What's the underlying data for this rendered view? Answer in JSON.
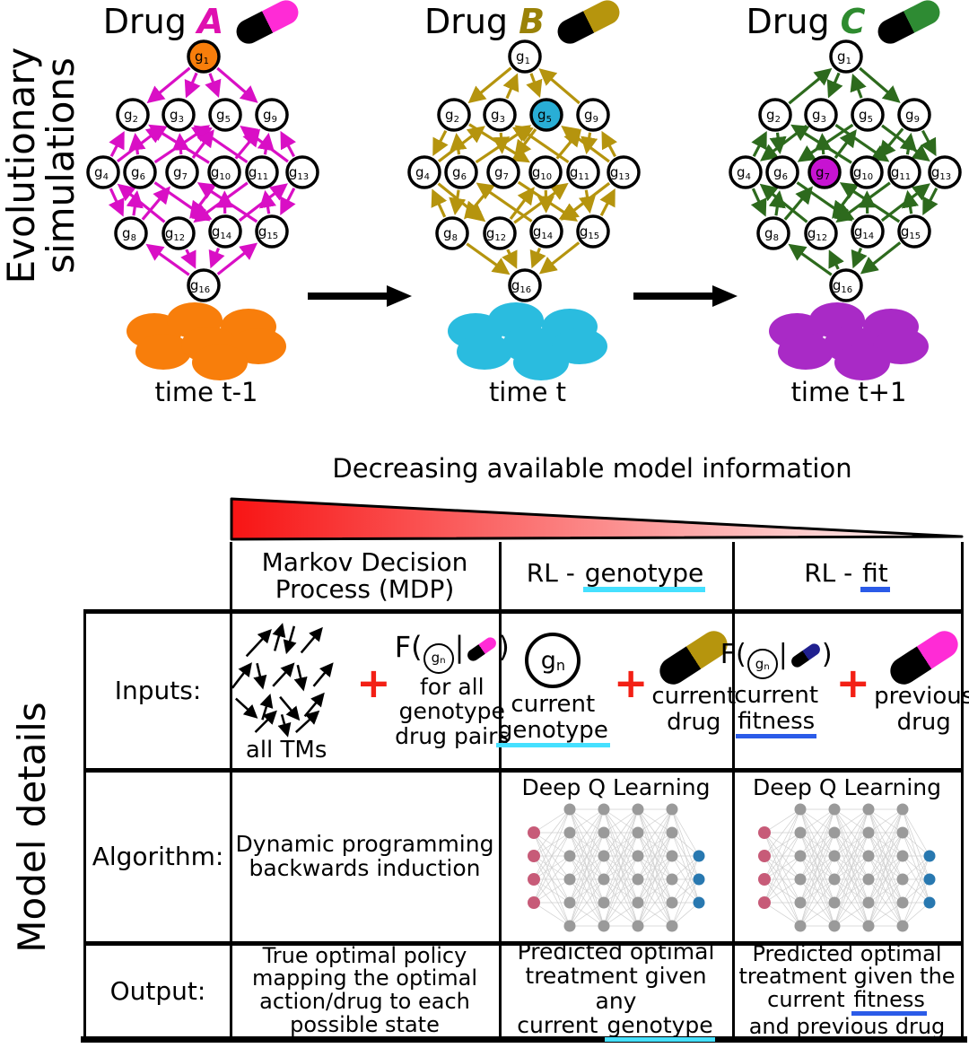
{
  "colors": {
    "plus_red": "#F32015",
    "underline_cyan": "#45E0FF",
    "underline_blue": "#2B5BE8",
    "pill_magenta": "#FF2BD6",
    "pill_olive": "#B6950D",
    "pill_green": "#2E8B33",
    "pill_navy": "#20208F",
    "nn_input": "#C75B78",
    "nn_hidden": "#9A9A9A",
    "nn_output": "#2878B0",
    "nn_edge": "#CFCFCF",
    "gradient_left": "#F81414",
    "gradient_right": "#FFFFFF"
  },
  "top": {
    "section_label_line1": "Evolutionary",
    "section_label_line2": "simulations",
    "node_prefix": "g",
    "node_count": 16,
    "panels": [
      {
        "title_prefix": "Drug",
        "letter": "A",
        "letter_color": "#DF10B0",
        "arrow_color": "#D90FC5",
        "pill_tip": "#FF2BD6",
        "highlight_node": 1,
        "highlight_fill": "#F87E0B",
        "cells_fill": "#F87E0B",
        "time_label": "time t-1",
        "edges": [
          [
            1,
            2
          ],
          [
            1,
            3
          ],
          [
            1,
            5
          ],
          [
            1,
            9
          ],
          [
            4,
            2
          ],
          [
            6,
            2
          ],
          [
            10,
            2
          ],
          [
            4,
            3
          ],
          [
            7,
            3
          ],
          [
            11,
            3
          ],
          [
            6,
            5
          ],
          [
            7,
            5
          ],
          [
            13,
            5
          ],
          [
            10,
            9
          ],
          [
            11,
            9
          ],
          [
            13,
            9
          ],
          [
            4,
            8
          ],
          [
            12,
            4
          ],
          [
            8,
            6
          ],
          [
            6,
            14
          ],
          [
            8,
            7
          ],
          [
            15,
            7
          ],
          [
            10,
            12
          ],
          [
            14,
            10
          ],
          [
            11,
            12
          ],
          [
            15,
            11
          ],
          [
            14,
            13
          ],
          [
            13,
            15
          ],
          [
            16,
            8
          ],
          [
            12,
            16
          ],
          [
            14,
            16
          ],
          [
            16,
            15
          ]
        ]
      },
      {
        "title_prefix": "Drug",
        "letter": "B",
        "letter_color": "#9A8207",
        "arrow_color": "#B5940E",
        "pill_tip": "#B6950D",
        "highlight_node": 5,
        "highlight_fill": "#29AED6",
        "cells_fill": "#2ABCDF",
        "time_label": "time t",
        "edges": [
          [
            1,
            2
          ],
          [
            3,
            1
          ],
          [
            1,
            5
          ],
          [
            9,
            1
          ],
          [
            2,
            4
          ],
          [
            6,
            2
          ],
          [
            2,
            10
          ],
          [
            4,
            3
          ],
          [
            3,
            7
          ],
          [
            11,
            3
          ],
          [
            6,
            5
          ],
          [
            5,
            7
          ],
          [
            13,
            5
          ],
          [
            10,
            9
          ],
          [
            9,
            11
          ],
          [
            13,
            9
          ],
          [
            8,
            4
          ],
          [
            4,
            12
          ],
          [
            6,
            8
          ],
          [
            14,
            6
          ],
          [
            7,
            8
          ],
          [
            7,
            15
          ],
          [
            12,
            10
          ],
          [
            10,
            14
          ],
          [
            12,
            11
          ],
          [
            11,
            15
          ],
          [
            13,
            14
          ],
          [
            15,
            13
          ],
          [
            8,
            16
          ],
          [
            12,
            16
          ],
          [
            14,
            16
          ],
          [
            15,
            16
          ]
        ]
      },
      {
        "title_prefix": "Drug",
        "letter": "C",
        "letter_color": "#2E8B2F",
        "arrow_color": "#2D6A1D",
        "pill_tip": "#2E8B33",
        "highlight_node": 7,
        "highlight_fill": "#C713D2",
        "cells_fill": "#A92AC6",
        "time_label": "time t+1",
        "edges": [
          [
            2,
            1
          ],
          [
            1,
            3
          ],
          [
            5,
            1
          ],
          [
            1,
            9
          ],
          [
            4,
            2
          ],
          [
            2,
            6
          ],
          [
            10,
            2
          ],
          [
            3,
            4
          ],
          [
            7,
            3
          ],
          [
            3,
            11
          ],
          [
            5,
            6
          ],
          [
            7,
            5
          ],
          [
            5,
            13
          ],
          [
            9,
            10
          ],
          [
            11,
            9
          ],
          [
            9,
            13
          ],
          [
            4,
            8
          ],
          [
            12,
            4
          ],
          [
            8,
            6
          ],
          [
            6,
            14
          ],
          [
            8,
            7
          ],
          [
            15,
            7
          ],
          [
            10,
            12
          ],
          [
            14,
            10
          ],
          [
            11,
            12
          ],
          [
            15,
            11
          ],
          [
            14,
            13
          ],
          [
            13,
            15
          ],
          [
            16,
            8
          ],
          [
            16,
            12
          ],
          [
            14,
            16
          ],
          [
            15,
            16
          ]
        ]
      }
    ]
  },
  "gradient": {
    "title": "Decreasing available model information"
  },
  "table": {
    "section_label": "Model details",
    "plus": "+",
    "header": {
      "mdp_line1": "Markov Decision",
      "mdp_line2": "Process (MDP)",
      "rl_genotype_prefix": "RL - ",
      "rl_genotype_word": "genotype",
      "rl_fit_prefix": "RL - ",
      "rl_fit_word": "fit"
    },
    "row_labels": [
      "Inputs:",
      "Algorithm:",
      "Output:"
    ],
    "formula": {
      "f": "F(",
      "g": "g",
      "sub": "n",
      "bar": "|",
      "close": ")"
    },
    "inputs": {
      "mdp": {
        "tm_label": "all TMs",
        "caption": [
          "for all",
          "genotype",
          "drug pairs"
        ]
      },
      "rlg": {
        "g": "g",
        "sub": "n",
        "label1_line1": "current",
        "label1_u": "genotype",
        "label2_line1": "current",
        "label2_line2": "drug"
      },
      "rlf": {
        "label1_line1": "current",
        "label1_u": "fitness",
        "label2_line1": "previous",
        "label2_line2": "drug"
      }
    },
    "algorithm": {
      "mdp_line1": "Dynamic programming",
      "mdp_line2": "backwards induction",
      "dql_title": "Deep Q Learning",
      "nn": {
        "inputs": 4,
        "hidden_layers": 4,
        "hidden_per_layer": 6,
        "outputs": 3
      }
    },
    "output": {
      "mdp_lines": [
        "True optimal policy",
        "mapping the optimal",
        "action/drug to each",
        "possible state"
      ],
      "rlg_line1": "Predicted optimal",
      "rlg_line2": "treatment given any",
      "rlg_line3_pre": "current ",
      "rlg_line3_u": "genotype",
      "rlf_line1": "Predicted optimal",
      "rlf_line2": "treatment given the",
      "rlf_line3_pre": "current ",
      "rlf_line3_u": "fitness",
      "rlf_line4": "and previous drug"
    }
  }
}
